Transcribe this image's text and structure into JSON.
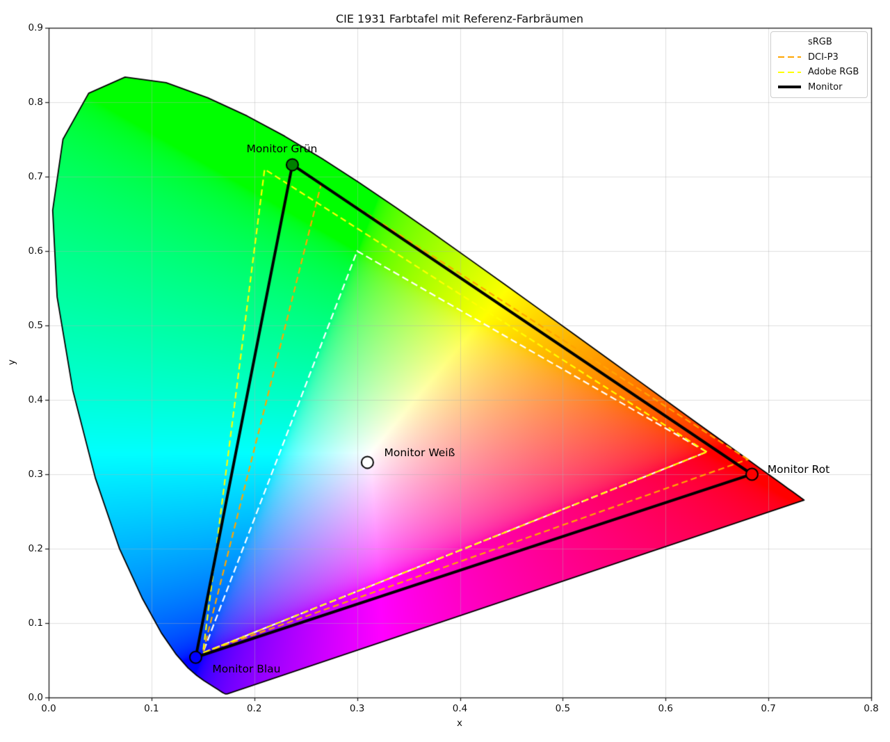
{
  "title": "CIE 1931 Farbtafel mit Referenz-Farbräumen",
  "axes": {
    "xlabel": "x",
    "ylabel": "y",
    "xticks": [
      "0.0",
      "0.1",
      "0.2",
      "0.3",
      "0.4",
      "0.5",
      "0.6",
      "0.7",
      "0.8"
    ],
    "yticks": [
      "0.0",
      "0.1",
      "0.2",
      "0.3",
      "0.4",
      "0.5",
      "0.6",
      "0.7",
      "0.8",
      "0.9"
    ]
  },
  "legend": {
    "position": "upper right",
    "items": [
      {
        "label": "sRGB",
        "color": "#ffffff",
        "style": "dashed",
        "width": 2.2
      },
      {
        "label": "DCI-P3",
        "color": "#ffa500",
        "style": "dashed",
        "width": 2.2
      },
      {
        "label": "Adobe RGB",
        "color": "#ffff00",
        "style": "dashed",
        "width": 2.2
      },
      {
        "label": "Monitor",
        "color": "#000000",
        "style": "solid",
        "width": 4
      }
    ]
  },
  "chart_data": {
    "type": "line",
    "subtype": "cie-1931-chromaticity-diagram",
    "title": "CIE 1931 Farbtafel mit Referenz-Farbräumen",
    "xlabel": "x",
    "ylabel": "y",
    "xlim": [
      0.0,
      0.8
    ],
    "ylim": [
      0.0,
      0.9
    ],
    "grid": true,
    "grid_color": "#b0b0b0",
    "grid_alpha": 0.4,
    "background": "#ffffff",
    "legend_position": "upper right",
    "series": [
      {
        "name": "sRGB",
        "color": "#ffffff",
        "dash": [
          10,
          5
        ],
        "linewidth": 2.2,
        "closed": true,
        "vertices": [
          [
            0.64,
            0.33
          ],
          [
            0.3,
            0.6
          ],
          [
            0.15,
            0.06
          ]
        ]
      },
      {
        "name": "DCI-P3",
        "color": "#ffa500",
        "dash": [
          9,
          5
        ],
        "linewidth": 2.2,
        "closed": true,
        "vertices": [
          [
            0.68,
            0.32
          ],
          [
            0.265,
            0.69
          ],
          [
            0.15,
            0.06
          ]
        ]
      },
      {
        "name": "Adobe RGB",
        "color": "#ffff00",
        "dash": [
          9,
          5
        ],
        "linewidth": 2.2,
        "closed": true,
        "vertices": [
          [
            0.64,
            0.33
          ],
          [
            0.21,
            0.71
          ],
          [
            0.15,
            0.06
          ]
        ]
      },
      {
        "name": "Monitor",
        "color": "#000000",
        "dash": null,
        "linewidth": 4,
        "closed": true,
        "vertices": [
          [
            0.684,
            0.3
          ],
          [
            0.237,
            0.716
          ],
          [
            0.143,
            0.054
          ]
        ]
      }
    ],
    "points": [
      {
        "label": "Monitor Grün",
        "x": 0.237,
        "y": 0.716,
        "marker_color": "#008000",
        "label_offset": [
          -15,
          -23
        ]
      },
      {
        "label": "Monitor Rot",
        "x": 0.684,
        "y": 0.3,
        "marker_color": "#ff0000",
        "label_offset": [
          67,
          -7
        ]
      },
      {
        "label": "Monitor Blau",
        "x": 0.143,
        "y": 0.054,
        "marker_color": "#0000ff",
        "label_offset": [
          73,
          17
        ]
      },
      {
        "label": "Monitor Weiß",
        "x": 0.31,
        "y": 0.316,
        "marker_color": "#ffffff",
        "label_offset": [
          75,
          -14
        ]
      }
    ],
    "marker": {
      "radius": 8.5,
      "edge_color": "#000000",
      "edge_width": 2
    },
    "spectral_locus": [
      [
        0.1741,
        0.005
      ],
      [
        0.174,
        0.005
      ],
      [
        0.1738,
        0.0049
      ],
      [
        0.1736,
        0.0049
      ],
      [
        0.1733,
        0.0048
      ],
      [
        0.173,
        0.0048
      ],
      [
        0.1726,
        0.0048
      ],
      [
        0.1721,
        0.0048
      ],
      [
        0.1714,
        0.0051
      ],
      [
        0.1703,
        0.0058
      ],
      [
        0.1689,
        0.0069
      ],
      [
        0.1669,
        0.0086
      ],
      [
        0.1644,
        0.0109
      ],
      [
        0.1611,
        0.0138
      ],
      [
        0.1566,
        0.0177
      ],
      [
        0.151,
        0.0227
      ],
      [
        0.144,
        0.0297
      ],
      [
        0.1355,
        0.0399
      ],
      [
        0.1241,
        0.0578
      ],
      [
        0.1096,
        0.0868
      ],
      [
        0.0913,
        0.1327
      ],
      [
        0.0687,
        0.2007
      ],
      [
        0.0454,
        0.295
      ],
      [
        0.0235,
        0.4127
      ],
      [
        0.0082,
        0.5384
      ],
      [
        0.0039,
        0.6548
      ],
      [
        0.0139,
        0.7502
      ],
      [
        0.0389,
        0.812
      ],
      [
        0.0743,
        0.8338
      ],
      [
        0.1142,
        0.8262
      ],
      [
        0.1547,
        0.8059
      ],
      [
        0.1929,
        0.7816
      ],
      [
        0.2296,
        0.7543
      ],
      [
        0.2658,
        0.7243
      ],
      [
        0.3016,
        0.6923
      ],
      [
        0.3373,
        0.6589
      ],
      [
        0.3731,
        0.6245
      ],
      [
        0.4087,
        0.5896
      ],
      [
        0.4441,
        0.5547
      ],
      [
        0.4788,
        0.5202
      ],
      [
        0.5125,
        0.4866
      ],
      [
        0.5448,
        0.4544
      ],
      [
        0.5752,
        0.4242
      ],
      [
        0.6029,
        0.3965
      ],
      [
        0.627,
        0.3725
      ],
      [
        0.6482,
        0.3514
      ],
      [
        0.6658,
        0.334
      ],
      [
        0.6801,
        0.3197
      ],
      [
        0.6915,
        0.3083
      ],
      [
        0.7006,
        0.2993
      ],
      [
        0.7079,
        0.292
      ],
      [
        0.714,
        0.2859
      ],
      [
        0.719,
        0.2809
      ],
      [
        0.723,
        0.277
      ],
      [
        0.726,
        0.274
      ],
      [
        0.7283,
        0.2717
      ],
      [
        0.73,
        0.27
      ],
      [
        0.7311,
        0.2689
      ],
      [
        0.732,
        0.268
      ],
      [
        0.7327,
        0.2673
      ],
      [
        0.7334,
        0.2666
      ],
      [
        0.734,
        0.266
      ],
      [
        0.7344,
        0.2656
      ],
      [
        0.7346,
        0.2654
      ],
      [
        0.7347,
        0.2653
      ]
    ]
  }
}
